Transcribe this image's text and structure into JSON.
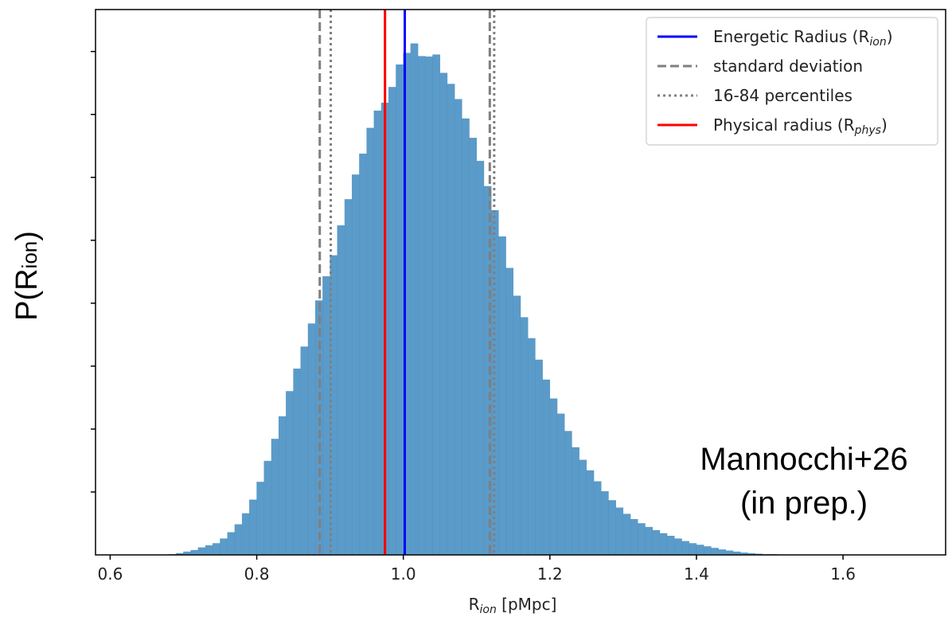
{
  "chart_data": {
    "type": "bar",
    "subtype": "histogram",
    "xlabel": {
      "main": "R",
      "sub": "ion",
      "tail": " [pMpc]"
    },
    "ylabel": {
      "main": "P(R",
      "sub": "ion",
      "tail": ")"
    },
    "xlim": [
      0.58,
      1.74
    ],
    "ylim": [
      0,
      1.04
    ],
    "xticks": [
      {
        "value": 0.6,
        "label": "0.6"
      },
      {
        "value": 0.8,
        "label": "0.8"
      },
      {
        "value": 1.0,
        "label": "1.0"
      },
      {
        "value": 1.2,
        "label": "1.2"
      },
      {
        "value": 1.4,
        "label": "1.4"
      },
      {
        "value": 1.6,
        "label": "1.6"
      }
    ],
    "yticks_unlabeled": [
      0.12,
      0.24,
      0.36,
      0.48,
      0.6,
      0.72,
      0.84,
      0.96
    ],
    "bar_color": "#5b9bc9",
    "bin_start": 0.68,
    "bin_width": 0.01,
    "values": [
      0.001,
      0.003,
      0.006,
      0.009,
      0.014,
      0.018,
      0.022,
      0.031,
      0.043,
      0.058,
      0.079,
      0.105,
      0.139,
      0.179,
      0.221,
      0.264,
      0.312,
      0.355,
      0.397,
      0.441,
      0.485,
      0.531,
      0.571,
      0.628,
      0.678,
      0.725,
      0.765,
      0.814,
      0.847,
      0.862,
      0.892,
      0.935,
      0.957,
      0.975,
      0.951,
      0.95,
      0.954,
      0.919,
      0.898,
      0.869,
      0.832,
      0.795,
      0.751,
      0.703,
      0.657,
      0.607,
      0.547,
      0.494,
      0.453,
      0.413,
      0.372,
      0.334,
      0.298,
      0.269,
      0.236,
      0.205,
      0.181,
      0.161,
      0.14,
      0.121,
      0.104,
      0.09,
      0.078,
      0.068,
      0.06,
      0.053,
      0.047,
      0.041,
      0.036,
      0.031,
      0.026,
      0.022,
      0.019,
      0.016,
      0.013,
      0.01,
      0.008,
      0.006,
      0.004,
      0.003,
      0.002,
      0.001,
      0.001,
      0.0005
    ],
    "vlines": [
      {
        "x": 1.002,
        "color": "#0000ff",
        "style": "solid",
        "width": 3
      },
      {
        "x": 0.975,
        "color": "#ff0000",
        "style": "solid",
        "width": 3
      },
      {
        "x": 0.886,
        "color": "#7f7f7f",
        "style": "dashed",
        "width": 3
      },
      {
        "x": 1.118,
        "color": "#7f7f7f",
        "style": "dashed",
        "width": 3
      },
      {
        "x": 0.901,
        "color": "#7f7f7f",
        "style": "dotted",
        "width": 3
      },
      {
        "x": 1.124,
        "color": "#7f7f7f",
        "style": "dotted",
        "width": 3
      }
    ],
    "legend": {
      "position": "top-right",
      "entries": [
        {
          "main": "Energetic Radius (R",
          "sub": "ion",
          "tail": ")",
          "color": "#0000ff",
          "style": "solid"
        },
        {
          "main": "standard deviation",
          "sub": "",
          "tail": "",
          "color": "#7f7f7f",
          "style": "dashed"
        },
        {
          "main": "16-84 percentiles",
          "sub": "",
          "tail": "",
          "color": "#7f7f7f",
          "style": "dotted"
        },
        {
          "main": "Physical radius (R",
          "sub": "phys",
          "tail": ")",
          "color": "#ff0000",
          "style": "solid"
        }
      ]
    },
    "annotation": [
      "Mannocchi+26",
      "(in prep.)"
    ]
  }
}
